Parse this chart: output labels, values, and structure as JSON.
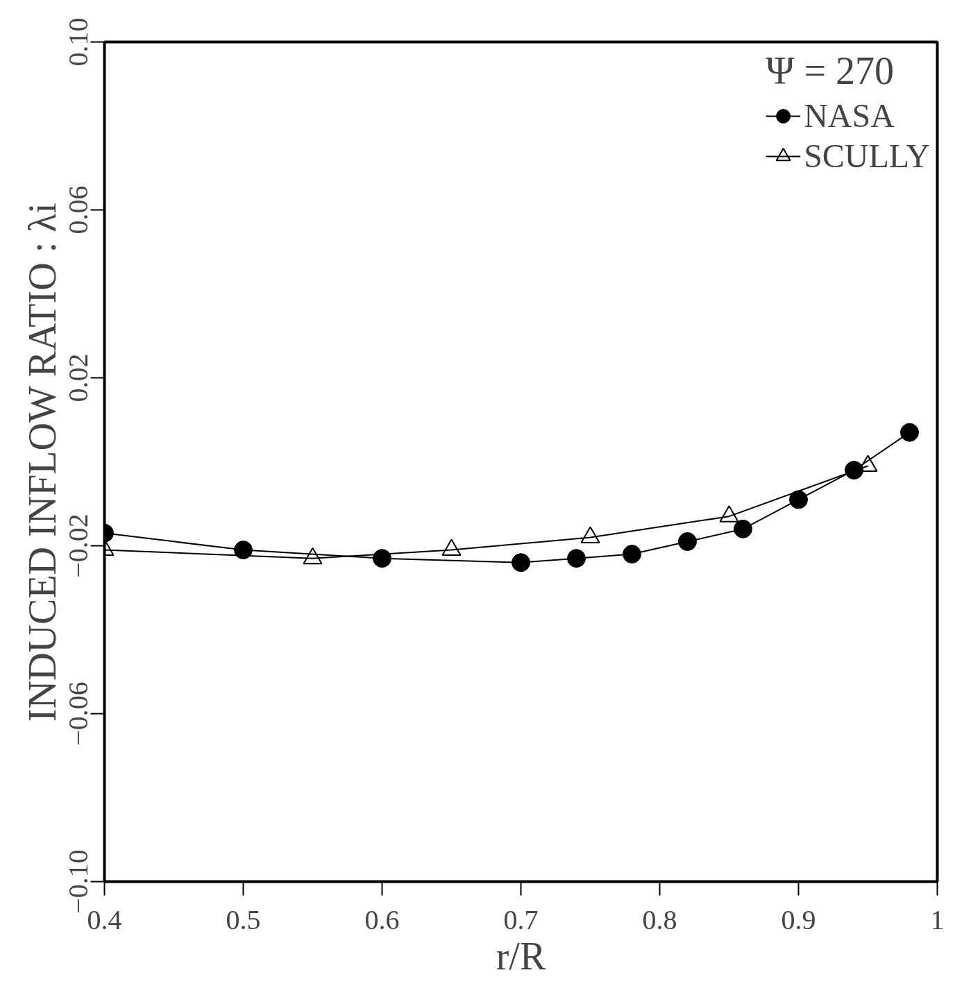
{
  "chart_data": {
    "type": "line",
    "xlabel": "r/R",
    "ylabel": "INDUCED INFLOW RATIO : λi",
    "legend_title": "Ψ = 270",
    "xlim": [
      0.4,
      1.0
    ],
    "xticks": [
      0.4,
      0.5,
      0.6,
      0.7,
      0.8,
      0.9,
      1
    ],
    "ylim": [
      -0.1,
      0.1
    ],
    "yticks": [
      {
        "value": -0.1,
        "label": "−0.10"
      },
      {
        "value": -0.06,
        "label": "−0.06"
      },
      {
        "value": -0.02,
        "label": "−0.02"
      },
      {
        "value": 0.02,
        "label": "0.02"
      },
      {
        "value": 0.06,
        "label": "0.06"
      },
      {
        "value": 0.1,
        "label": "0.10"
      }
    ],
    "grid": false,
    "legend": "top right",
    "line_style": "solid",
    "series": [
      {
        "name": "NASA",
        "color": "#000000",
        "marker": "circle",
        "x": [
          0.4,
          0.5,
          0.6,
          0.7,
          0.74,
          0.78,
          0.82,
          0.86,
          0.9,
          0.94,
          0.98
        ],
        "values": [
          -0.017,
          -0.021,
          -0.023,
          -0.024,
          -0.023,
          -0.022,
          -0.019,
          -0.016,
          -0.009,
          -0.002,
          0.007
        ]
      },
      {
        "name": "SCULLY",
        "color": "#000000",
        "marker": "triangle",
        "x": [
          0.4,
          0.55,
          0.65,
          0.75,
          0.85,
          0.95
        ],
        "values": [
          -0.021,
          -0.023,
          -0.021,
          -0.018,
          -0.013,
          -0.001
        ]
      }
    ]
  }
}
